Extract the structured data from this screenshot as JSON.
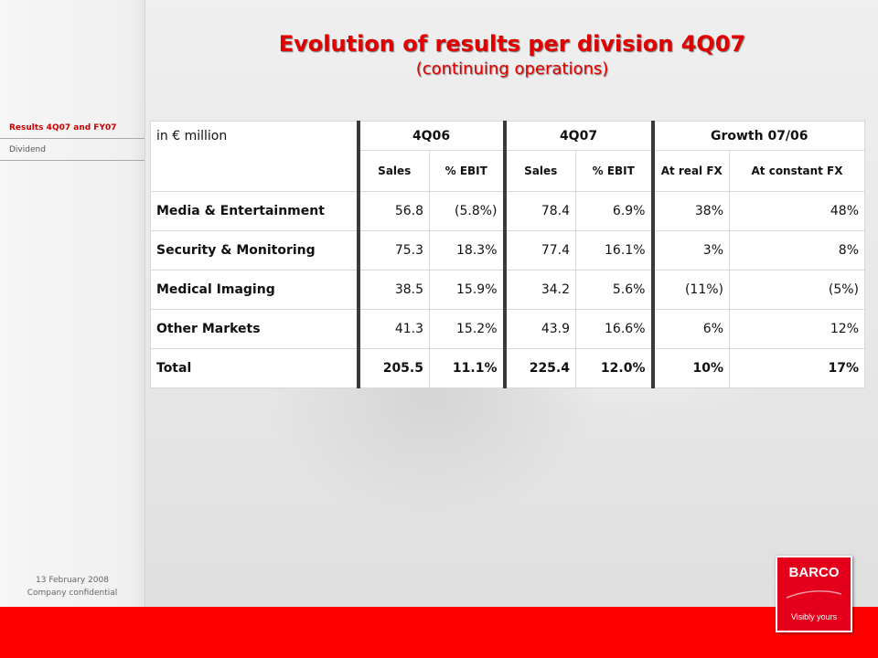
{
  "sidebar": {
    "items": [
      {
        "label": "Results  4Q07  and FY07",
        "active": true
      },
      {
        "label": "Dividend",
        "active": false
      }
    ],
    "footer_date": "13 February 2008",
    "footer_note": "Company confidential"
  },
  "header": {
    "title": "Evolution of results per division 4Q07",
    "subtitle": "(continuing operations)"
  },
  "table": {
    "unit_label": "in € million",
    "group_headers": [
      "4Q06",
      "4Q07",
      "Growth 07/06"
    ],
    "sub_headers": [
      "Sales",
      "% EBIT",
      "Sales",
      "% EBIT",
      "At real FX",
      "At constant FX"
    ],
    "rows": [
      {
        "label": "Media & Entertainment",
        "cells": [
          "56.8",
          "(5.8%)",
          "78.4",
          "6.9%",
          "38%",
          "48%"
        ]
      },
      {
        "label": "Security & Monitoring",
        "cells": [
          "75.3",
          "18.3%",
          "77.4",
          "16.1%",
          "3%",
          "8%"
        ]
      },
      {
        "label": "Medical Imaging",
        "cells": [
          "38.5",
          "15.9%",
          "34.2",
          "5.6%",
          "(11%)",
          "(5%)"
        ]
      },
      {
        "label": "Other Markets",
        "cells": [
          "41.3",
          "15.2%",
          "43.9",
          "16.6%",
          "6%",
          "12%"
        ]
      },
      {
        "label": "Total",
        "cells": [
          "205.5",
          "11.1%",
          "225.4",
          "12.0%",
          "10%",
          "17%"
        ]
      }
    ]
  },
  "logo": {
    "brand": "BARCO",
    "tagline": "Visibly yours"
  },
  "colors": {
    "accent": "#e00000",
    "bottom_bar": "#ff0000",
    "logo_bg": "#e4001b"
  }
}
